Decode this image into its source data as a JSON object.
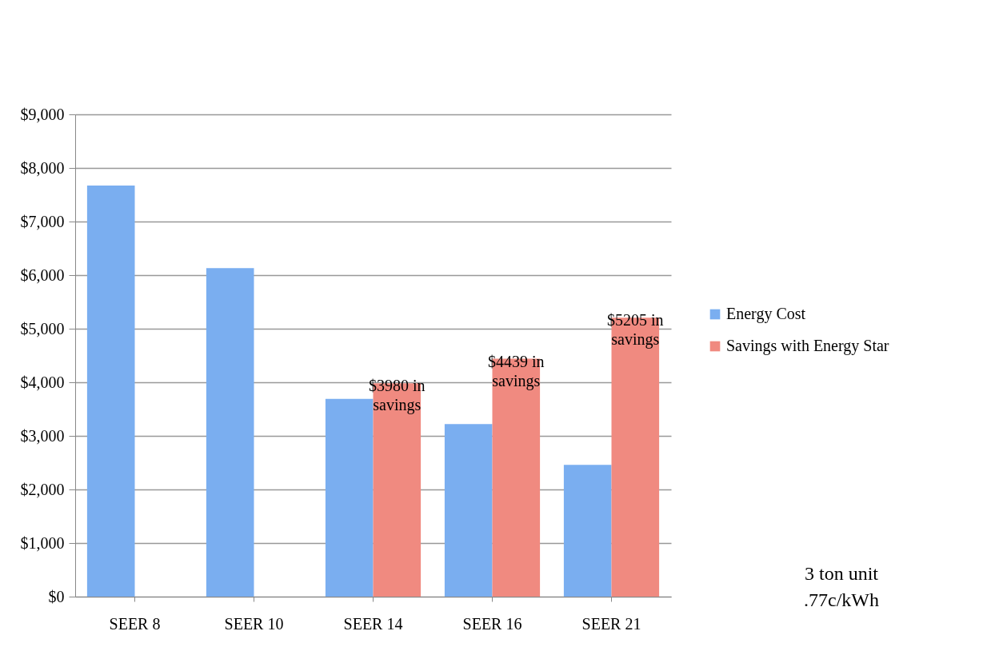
{
  "chart_data": {
    "type": "bar",
    "categories": [
      "SEER 8",
      "SEER 10",
      "SEER 14",
      "SEER 16",
      "SEER 21"
    ],
    "series": [
      {
        "name": "Energy Cost",
        "color": "#7aaef0",
        "values": [
          7670,
          6130,
          3690,
          3220,
          2460
        ]
      },
      {
        "name": "Savings with Energy Star",
        "color": "#f08a80",
        "values": [
          null,
          null,
          3980,
          4439,
          5205
        ],
        "value_labels": [
          null,
          null,
          "$3980 in\nsavings",
          "$4439 in\nsavings",
          "$5205 in\nsavings"
        ]
      }
    ],
    "ylim": [
      0,
      9000
    ],
    "yticks": [
      {
        "value": 0,
        "label": "$0"
      },
      {
        "value": 1000,
        "label": "$1,000"
      },
      {
        "value": 2000,
        "label": "$2,000"
      },
      {
        "value": 3000,
        "label": "$3,000"
      },
      {
        "value": 4000,
        "label": "$4,000"
      },
      {
        "value": 5000,
        "label": "$5,000"
      },
      {
        "value": 6000,
        "label": "$6,000"
      },
      {
        "value": 7000,
        "label": "$7,000"
      },
      {
        "value": 8000,
        "label": "$8,000"
      },
      {
        "value": 9000,
        "label": "$9,000"
      }
    ],
    "grid": "y",
    "legend": "right",
    "annotations": [
      "3 ton unit",
      ".77c/kWh"
    ]
  }
}
